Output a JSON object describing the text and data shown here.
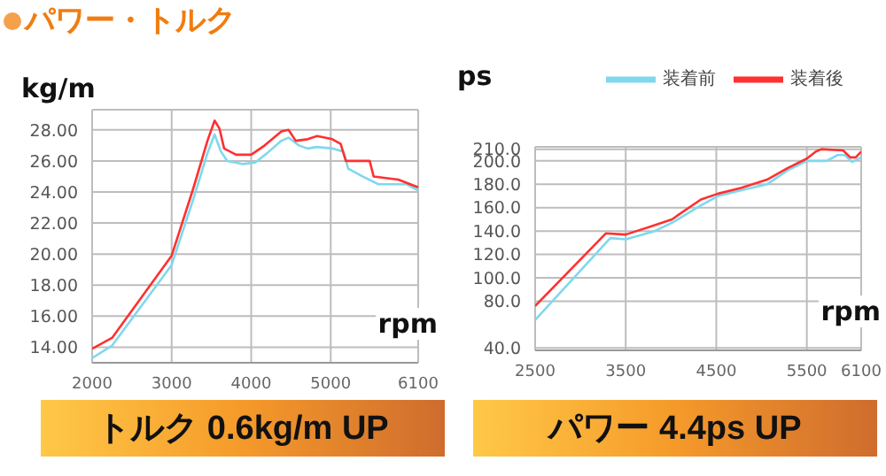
{
  "chart_data": [
    {
      "type": "line",
      "title": "パワー・トルク",
      "ylabel": "kg/m",
      "xlabel": "rpm",
      "annotations": [
        "トルク 0.6kg/m UP"
      ],
      "xlim": [
        2000,
        6100
      ],
      "xticks": [
        2000,
        3000,
        4000,
        5000,
        6100
      ],
      "ylim": [
        13,
        29.3
      ],
      "yticks": [
        {
          "value": 14,
          "label": "14.00"
        },
        {
          "value": 16,
          "label": "16.00"
        },
        {
          "value": 18,
          "label": "18.00"
        },
        {
          "value": 20,
          "label": "20.00"
        },
        {
          "value": 22,
          "label": "22.00"
        },
        {
          "value": 24,
          "label": "24.00"
        },
        {
          "value": 26,
          "label": "26.00"
        },
        {
          "value": 28,
          "label": "28.00"
        }
      ],
      "grid": true,
      "marker": "none",
      "line_style": "solid",
      "series": [
        {
          "color": "#7fd8ee",
          "x": [
            2000,
            2250,
            3000,
            3270,
            3450,
            3540,
            3620,
            3700,
            3900,
            4050,
            4200,
            4380,
            4470,
            4600,
            4710,
            4830,
            5020,
            5160,
            5220,
            5400,
            5600,
            5750,
            5950,
            6100
          ],
          "values": [
            13.3,
            14.1,
            19.3,
            23.5,
            26.5,
            27.7,
            26.6,
            26.0,
            25.8,
            25.9,
            26.5,
            27.3,
            27.5,
            27.0,
            26.8,
            26.9,
            26.8,
            26.6,
            25.5,
            25.0,
            24.5,
            24.5,
            24.5,
            24.1
          ]
        },
        {
          "color": "#ff3030",
          "x": [
            2000,
            2250,
            3000,
            3270,
            3450,
            3540,
            3600,
            3660,
            3810,
            4000,
            4170,
            4380,
            4470,
            4560,
            4710,
            4830,
            5020,
            5125,
            5190,
            5330,
            5490,
            5540,
            5850,
            6100
          ],
          "values": [
            13.9,
            14.6,
            19.9,
            24.2,
            27.3,
            28.6,
            28.1,
            26.8,
            26.4,
            26.4,
            27.0,
            27.9,
            28.0,
            27.3,
            27.4,
            27.6,
            27.4,
            27.1,
            26.0,
            26.0,
            26.0,
            25.0,
            24.8,
            24.3
          ]
        }
      ]
    },
    {
      "type": "line",
      "ylabel": "ps",
      "xlabel": "rpm",
      "annotations": [
        "パワー 4.4ps UP"
      ],
      "xlim": [
        2500,
        6100
      ],
      "xticks": [
        2500,
        3500,
        4500,
        5500,
        6100
      ],
      "ylim": [
        38,
        212
      ],
      "yticks": [
        {
          "value": 40,
          "label": "40.0"
        },
        {
          "value": 80,
          "label": "80.0"
        },
        {
          "value": 100,
          "label": "100.0"
        },
        {
          "value": 120,
          "label": "120.0"
        },
        {
          "value": 140,
          "label": "140.0"
        },
        {
          "value": 160,
          "label": "160.0"
        },
        {
          "value": 180,
          "label": "180.0"
        },
        {
          "value": 200,
          "label": "200.0"
        },
        {
          "value": 210,
          "label": "210.0"
        }
      ],
      "grid": true,
      "legend": "top right",
      "marker": "none",
      "line_style": "solid",
      "series": [
        {
          "name": "装着前",
          "color": "#7fd8ee",
          "x": [
            2500,
            3330,
            3500,
            3820,
            4010,
            4330,
            4520,
            4780,
            5060,
            5290,
            5500,
            5720,
            5840,
            5920,
            6000,
            6100
          ],
          "values": [
            64,
            134,
            133,
            140,
            147,
            162,
            170,
            175,
            180,
            192,
            200,
            200,
            205,
            205,
            199,
            203
          ]
        },
        {
          "name": "装着後",
          "color": "#ff3030",
          "x": [
            2500,
            3280,
            3500,
            3820,
            4010,
            4330,
            4520,
            4780,
            5060,
            5290,
            5500,
            5600,
            5660,
            5900,
            5980,
            6040,
            6100
          ],
          "values": [
            76,
            138,
            137,
            145,
            150,
            167,
            172,
            177,
            184,
            194,
            202,
            208,
            210,
            209,
            203,
            203,
            208
          ]
        }
      ]
    }
  ]
}
